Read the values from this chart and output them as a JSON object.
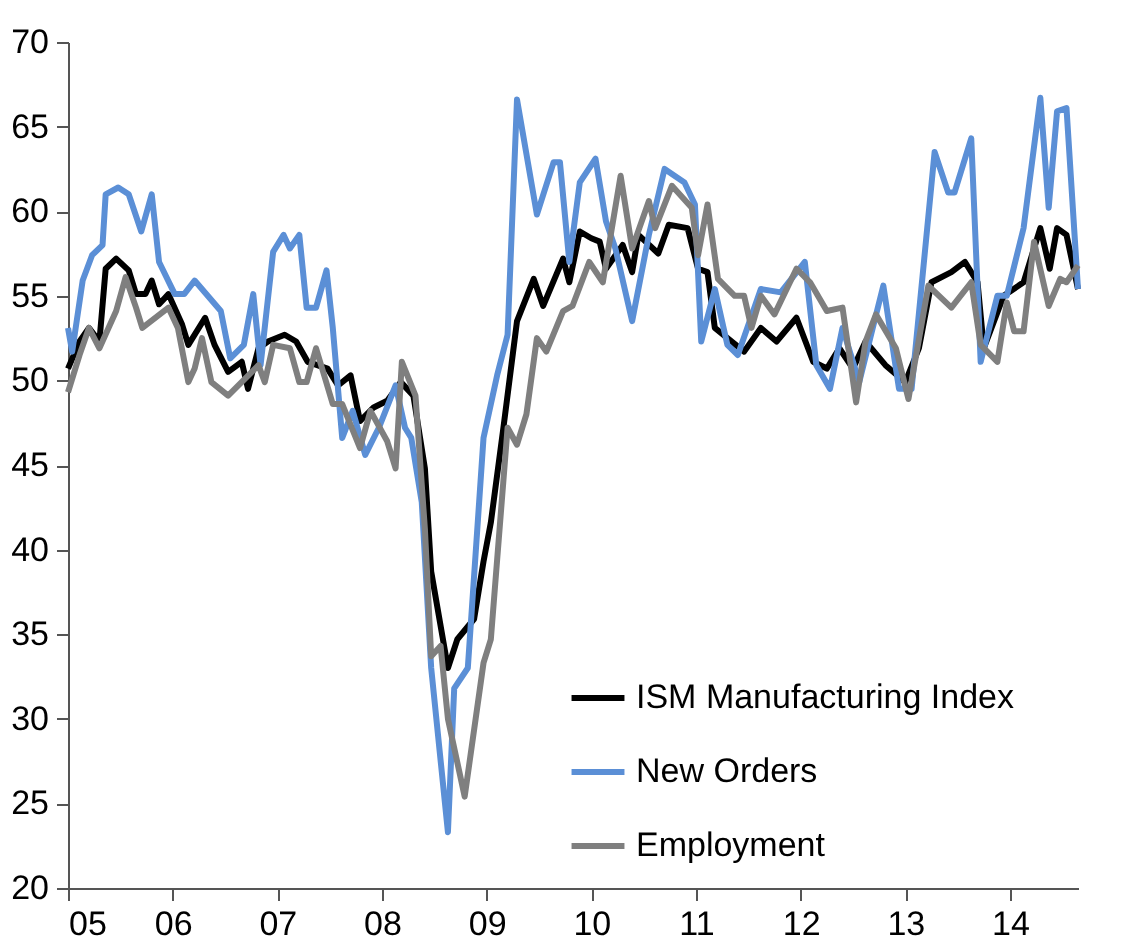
{
  "chart_data": {
    "type": "line",
    "xlim": [
      2005,
      2014.65
    ],
    "xticks": [
      {
        "value": 2005,
        "label": "05"
      },
      {
        "value": 2006,
        "label": "06"
      },
      {
        "value": 2007,
        "label": "07"
      },
      {
        "value": 2008,
        "label": "08"
      },
      {
        "value": 2009,
        "label": "09"
      },
      {
        "value": 2010,
        "label": "10"
      },
      {
        "value": 2011,
        "label": "11"
      },
      {
        "value": 2012,
        "label": "12"
      },
      {
        "value": 2013,
        "label": "13"
      },
      {
        "value": 2014,
        "label": "14"
      }
    ],
    "ylim": [
      20,
      70
    ],
    "yticks": [
      20,
      25,
      30,
      35,
      40,
      45,
      50,
      55,
      60,
      65,
      70
    ],
    "grid": false,
    "legend": "bottom right",
    "marker": "none",
    "line_style": "solid",
    "series": [
      {
        "name": "ISM Manufacturing Index",
        "color": "#000000",
        "x": [
          2005,
          2005.11,
          2005.2,
          2005.3,
          2005.36,
          2005.46,
          2005.58,
          2005.65,
          2005.74,
          2005.8,
          2005.87,
          2005.96,
          2006.09,
          2006.15,
          2006.31,
          2006.4,
          2006.53,
          2006.66,
          2006.72,
          2006.82,
          2006.91,
          2007.07,
          2007.18,
          2007.29,
          2007.48,
          2007.58,
          2007.7,
          2007.79,
          2007.92,
          2008.05,
          2008.18,
          2008.3,
          2008.41,
          2008.47,
          2008.63,
          2008.72,
          2008.88,
          2008.97,
          2009.04,
          2009.16,
          2009.29,
          2009.45,
          2009.54,
          2009.73,
          2009.79,
          2009.89,
          2010.0,
          2010.08,
          2010.14,
          2010.3,
          2010.39,
          2010.45,
          2010.64,
          2010.74,
          2010.92,
          2011.02,
          2011.11,
          2011.18,
          2011.46,
          2011.62,
          2011.77,
          2011.96,
          2012.12,
          2012.25,
          2012.37,
          2012.5,
          2012.62,
          2012.81,
          2013.0,
          2013.13,
          2013.25,
          2013.44,
          2013.57,
          2013.69,
          2013.75,
          2013.94,
          2014.13,
          2014.29,
          2014.38,
          2014.45,
          2014.54,
          2014.65
        ],
        "values": [
          50.7,
          52.3,
          53.1,
          52.3,
          56.6,
          57.2,
          56.5,
          55.1,
          55.1,
          55.9,
          54.5,
          55.1,
          53.3,
          52.1,
          53.7,
          52.1,
          50.5,
          51.1,
          49.5,
          51.9,
          52.3,
          52.7,
          52.3,
          51.1,
          50.7,
          49.7,
          50.3,
          47.6,
          48.4,
          48.8,
          49.9,
          49.1,
          44.8,
          38.7,
          33.0,
          34.7,
          35.9,
          39.3,
          41.6,
          47.2,
          53.5,
          56.0,
          54.4,
          57.2,
          55.8,
          58.8,
          58.4,
          58.2,
          56.6,
          58.0,
          56.4,
          58.6,
          57.5,
          59.2,
          59.0,
          56.6,
          56.4,
          53.1,
          51.7,
          53.1,
          52.3,
          53.7,
          51.1,
          50.7,
          51.9,
          50.7,
          52.3,
          50.9,
          49.9,
          51.9,
          55.8,
          56.4,
          57.0,
          55.8,
          51.9,
          55.0,
          55.8,
          59.0,
          56.6,
          59.0,
          58.6,
          55.4
        ]
      },
      {
        "name": "New Orders",
        "color": "#5b8fd6",
        "x": [
          2005,
          2005.04,
          2005.14,
          2005.23,
          2005.33,
          2005.36,
          2005.48,
          2005.58,
          2005.7,
          2005.8,
          2005.87,
          2006.02,
          2006.11,
          2006.21,
          2006.46,
          2006.55,
          2006.68,
          2006.77,
          2006.84,
          2006.96,
          2007.06,
          2007.12,
          2007.21,
          2007.28,
          2007.37,
          2007.47,
          2007.53,
          2007.62,
          2007.72,
          2007.84,
          2007.97,
          2008.13,
          2008.22,
          2008.28,
          2008.38,
          2008.47,
          2008.63,
          2008.69,
          2008.82,
          2008.97,
          2009.1,
          2009.2,
          2009.29,
          2009.48,
          2009.64,
          2009.7,
          2009.79,
          2009.89,
          2010.04,
          2010.14,
          2010.23,
          2010.39,
          2010.55,
          2010.7,
          2010.89,
          2010.99,
          2011.05,
          2011.18,
          2011.3,
          2011.4,
          2011.62,
          2011.81,
          2012.04,
          2012.15,
          2012.28,
          2012.4,
          2012.56,
          2012.79,
          2012.94,
          2013.06,
          2013.28,
          2013.41,
          2013.47,
          2013.63,
          2013.72,
          2013.88,
          2013.97,
          2014.13,
          2014.29,
          2014.37,
          2014.45,
          2014.54,
          2014.65
        ],
        "values": [
          53.1,
          51.7,
          55.9,
          57.4,
          58.0,
          61.0,
          61.4,
          61.0,
          58.8,
          61.0,
          57.0,
          55.1,
          55.1,
          55.9,
          54.1,
          51.3,
          52.1,
          55.1,
          50.9,
          57.6,
          58.6,
          57.8,
          58.6,
          54.3,
          54.3,
          56.5,
          53.1,
          46.6,
          48.2,
          45.6,
          47.2,
          49.7,
          47.2,
          46.6,
          42.8,
          33.0,
          23.3,
          31.8,
          33.0,
          46.6,
          50.3,
          52.7,
          66.6,
          59.8,
          62.9,
          62.9,
          57.0,
          61.7,
          63.1,
          59.4,
          57.8,
          53.5,
          58.6,
          62.5,
          61.7,
          60.4,
          52.3,
          55.4,
          52.1,
          51.5,
          55.4,
          55.2,
          57.0,
          50.9,
          49.5,
          53.1,
          49.9,
          55.6,
          49.5,
          49.5,
          63.5,
          61.1,
          61.1,
          64.3,
          51.1,
          55.0,
          55.0,
          59.0,
          66.7,
          60.2,
          65.9,
          66.1,
          55.4
        ]
      },
      {
        "name": "Employment",
        "color": "#7f7f7f",
        "x": [
          2005,
          2005.11,
          2005.2,
          2005.3,
          2005.46,
          2005.55,
          2005.65,
          2005.71,
          2005.96,
          2006.05,
          2006.15,
          2006.21,
          2006.28,
          2006.37,
          2006.53,
          2006.82,
          2006.88,
          2006.96,
          2007.12,
          2007.21,
          2007.28,
          2007.37,
          2007.53,
          2007.62,
          2007.79,
          2007.89,
          2008.05,
          2008.13,
          2008.19,
          2008.32,
          2008.41,
          2008.47,
          2008.56,
          2008.63,
          2008.79,
          2008.97,
          2009.04,
          2009.2,
          2009.29,
          2009.38,
          2009.48,
          2009.57,
          2009.73,
          2009.82,
          2009.98,
          2010.11,
          2010.28,
          2010.39,
          2010.55,
          2010.61,
          2010.77,
          2010.96,
          2011.02,
          2011.11,
          2011.21,
          2011.37,
          2011.46,
          2011.53,
          2011.62,
          2011.75,
          2011.96,
          2012.09,
          2012.25,
          2012.4,
          2012.53,
          2012.62,
          2012.72,
          2012.91,
          2013.03,
          2013.22,
          2013.44,
          2013.63,
          2013.72,
          2013.88,
          2013.97,
          2014.04,
          2014.13,
          2014.23,
          2014.37,
          2014.48,
          2014.54,
          2014.65
        ],
        "values": [
          49.3,
          51.5,
          53.1,
          51.9,
          54.1,
          56.1,
          54.3,
          53.1,
          54.3,
          53.1,
          49.9,
          50.7,
          52.5,
          49.9,
          49.1,
          50.9,
          49.9,
          52.1,
          51.9,
          49.9,
          49.9,
          51.9,
          48.6,
          48.6,
          46.0,
          48.2,
          46.4,
          44.8,
          51.1,
          49.1,
          41.2,
          33.7,
          34.3,
          30.0,
          25.4,
          33.3,
          34.7,
          47.2,
          46.2,
          48.0,
          52.5,
          51.7,
          54.1,
          54.4,
          57.0,
          55.8,
          62.1,
          57.8,
          60.6,
          59.0,
          61.5,
          60.2,
          57.4,
          60.4,
          56.0,
          55.0,
          55.0,
          53.1,
          55.0,
          53.9,
          56.6,
          55.8,
          54.1,
          54.3,
          48.7,
          52.3,
          53.9,
          51.9,
          48.9,
          55.6,
          54.3,
          55.8,
          52.1,
          51.1,
          54.6,
          52.9,
          52.9,
          58.2,
          54.4,
          56.0,
          55.8,
          56.8
        ]
      }
    ]
  }
}
